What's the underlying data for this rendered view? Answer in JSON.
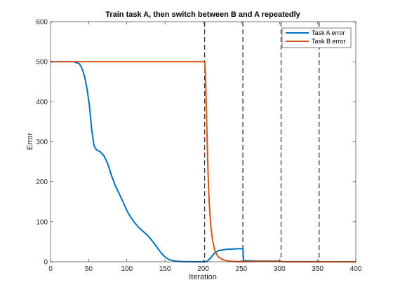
{
  "chart_data": {
    "type": "line",
    "title": "Train task A, then switch between B and A repeatedly",
    "xlabel": "Iteration",
    "ylabel": "Error",
    "xlim": [
      0,
      400
    ],
    "ylim": [
      0,
      600
    ],
    "xticks": [
      0,
      50,
      100,
      150,
      200,
      250,
      300,
      350,
      400
    ],
    "yticks": [
      0,
      100,
      200,
      300,
      400,
      500,
      600
    ],
    "grid": false,
    "legend_position": "top-right",
    "switch_lines": [
      202,
      252,
      302,
      352
    ],
    "series": [
      {
        "name": "Task A error",
        "color": "#0072BD",
        "x": [
          0,
          30,
          38,
          42,
          45,
          48,
          51,
          54,
          57,
          60,
          65,
          70,
          75,
          80,
          85,
          90,
          95,
          100,
          105,
          110,
          115,
          120,
          125,
          130,
          135,
          140,
          145,
          150,
          155,
          160,
          165,
          170,
          175,
          180,
          185,
          190,
          195,
          200,
          202,
          205,
          210,
          215,
          220,
          230,
          240,
          250,
          252,
          253,
          270,
          300,
          301,
          302,
          303,
          320,
          350,
          352,
          360,
          400
        ],
        "y": [
          500,
          500,
          495,
          480,
          460,
          430,
          390,
          330,
          290,
          280,
          275,
          265,
          245,
          215,
          190,
          170,
          150,
          128,
          112,
          98,
          87,
          78,
          70,
          60,
          48,
          35,
          22,
          12,
          6,
          3,
          1.5,
          0.8,
          0.5,
          0.3,
          0.2,
          0.1,
          0.1,
          0.1,
          0.1,
          1,
          10,
          22,
          28,
          31,
          32,
          33,
          33,
          3,
          2,
          2,
          2,
          1,
          0.5,
          0.3,
          0.2,
          0.1,
          0.1,
          0.1
        ]
      },
      {
        "name": "Task B error",
        "color": "#D95319",
        "x": [
          0,
          202,
          203,
          204,
          205,
          206,
          207,
          208,
          210,
          212,
          215,
          218,
          220,
          225,
          230,
          235,
          240,
          250,
          252,
          270,
          300,
          302,
          303,
          310,
          352,
          360,
          400
        ],
        "y": [
          500,
          500,
          470,
          400,
          320,
          250,
          190,
          145,
          90,
          58,
          30,
          17,
          12,
          6,
          3,
          1.5,
          0.8,
          0.5,
          0.5,
          1,
          1,
          1,
          0.5,
          0.2,
          0.1,
          0.1,
          0.1
        ]
      }
    ]
  }
}
